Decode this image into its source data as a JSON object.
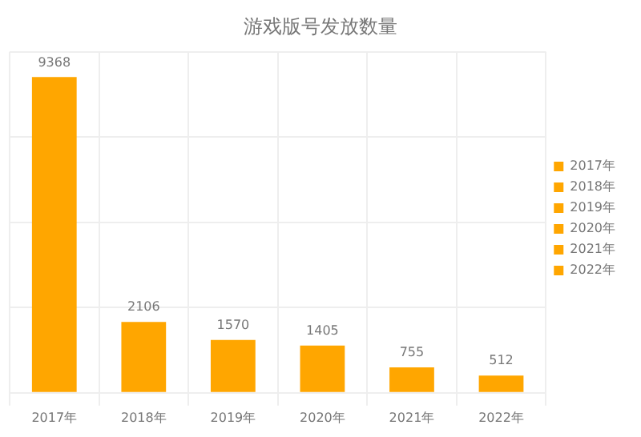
{
  "chart_data": {
    "type": "bar",
    "title": "游戏版号发放数量",
    "categories": [
      "2017年",
      "2018年",
      "2019年",
      "2020年",
      "2021年",
      "2022年"
    ],
    "series": [
      {
        "name": "2017年",
        "color": "#ffa600",
        "values": [
          9368,
          null,
          null,
          null,
          null,
          null
        ]
      },
      {
        "name": "2018年",
        "color": "#ffa600",
        "values": [
          null,
          2106,
          null,
          null,
          null,
          null
        ]
      },
      {
        "name": "2019年",
        "color": "#ffa600",
        "values": [
          null,
          null,
          1570,
          null,
          null,
          null
        ]
      },
      {
        "name": "2020年",
        "color": "#ffa600",
        "values": [
          null,
          null,
          null,
          1405,
          null,
          null
        ]
      },
      {
        "name": "2021年",
        "color": "#ffa600",
        "values": [
          null,
          null,
          null,
          null,
          755,
          null
        ]
      },
      {
        "name": "2022年",
        "color": "#ffa600",
        "values": [
          null,
          null,
          null,
          null,
          null,
          512
        ]
      }
    ],
    "data_labels": true,
    "grid": true,
    "legend": "right"
  }
}
